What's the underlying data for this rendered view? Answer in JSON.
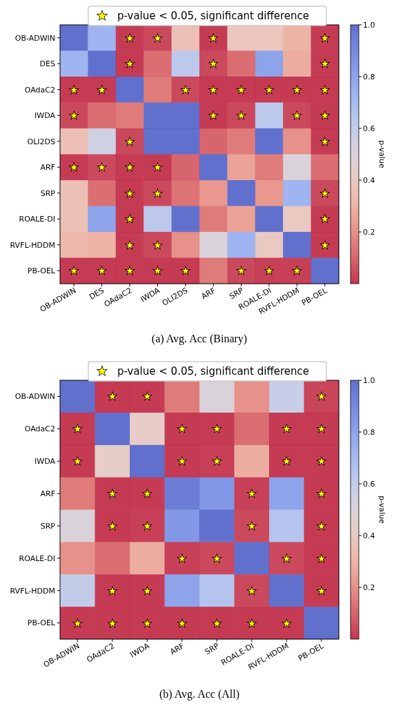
{
  "chart_data": [
    {
      "type": "heatmap",
      "title": "(a) Avg. Acc (Binary)",
      "clabel": "p-value",
      "annotations": [
        "p-value < 0.05, significant difference"
      ],
      "categories": [
        "OB-ADWIN",
        "DES",
        "OAdaC2",
        "IWDA",
        "OLI2DS",
        "ARF",
        "SRP",
        "ROALE-DI",
        "RVFL-HDDM",
        "PB-OEL"
      ],
      "y_categories": [
        "OB-ADWIN",
        "DES",
        "OAdaC2",
        "IWDA",
        "OLI2DS",
        "ARF",
        "SRP",
        "ROALE-DI",
        "RVFL-HDDM",
        "PB-OEL"
      ],
      "cells": [
        [
          1,
          0.73,
          0.01,
          0.04,
          0.35,
          0.01,
          0.38,
          0.38,
          0.3,
          0.01
        ],
        [
          0.73,
          1,
          0.01,
          0.12,
          0.62,
          0.04,
          0.12,
          0.8,
          0.28,
          0.01
        ],
        [
          0.01,
          0.01,
          1,
          0.15,
          0.04,
          0.01,
          0.01,
          0.01,
          0.01,
          0.01
        ],
        [
          0.04,
          0.12,
          0.15,
          1,
          1,
          0.01,
          0.04,
          0.62,
          0.04,
          0.01
        ],
        [
          0.35,
          0.55,
          0.04,
          1,
          1,
          0.1,
          0.15,
          1,
          0.2,
          0.01
        ],
        [
          0.01,
          0.04,
          0.01,
          0.01,
          0.1,
          1,
          0.25,
          0.15,
          0.5,
          0.12
        ],
        [
          0.35,
          0.12,
          0.01,
          0.04,
          0.13,
          0.22,
          1,
          0.22,
          0.73,
          0.04
        ],
        [
          0.35,
          0.8,
          0.01,
          0.62,
          1,
          0.15,
          0.25,
          1,
          0.4,
          0.01
        ],
        [
          0.32,
          0.3,
          0.01,
          0.04,
          0.2,
          0.5,
          0.73,
          0.4,
          1,
          0.01
        ],
        [
          0.01,
          0.01,
          0.01,
          0.01,
          0.01,
          0.15,
          0.04,
          0.02,
          0.02,
          1
        ]
      ],
      "cell_labels": [
        [
          null,
          null,
          "★",
          "★",
          null,
          "★",
          null,
          null,
          null,
          "★"
        ],
        [
          null,
          null,
          "★",
          null,
          null,
          "★",
          null,
          null,
          null,
          "★"
        ],
        [
          "★",
          "★",
          null,
          null,
          "★",
          "★",
          "★",
          "★",
          "★",
          "★"
        ],
        [
          "★",
          null,
          null,
          null,
          null,
          "★",
          "★",
          null,
          "★",
          "★"
        ],
        [
          null,
          null,
          "★",
          null,
          null,
          null,
          null,
          null,
          null,
          "★"
        ],
        [
          "★",
          "★",
          "★",
          "★",
          null,
          null,
          null,
          null,
          null,
          null
        ],
        [
          null,
          null,
          "★",
          "★",
          null,
          null,
          null,
          null,
          null,
          "★"
        ],
        [
          null,
          null,
          "★",
          null,
          null,
          null,
          null,
          null,
          null,
          "★"
        ],
        [
          null,
          null,
          "★",
          "★",
          null,
          null,
          null,
          null,
          null,
          "★"
        ],
        [
          "★",
          "★",
          "★",
          "★",
          "★",
          null,
          "★",
          "★",
          "★",
          null
        ]
      ],
      "clim": [
        0,
        1
      ],
      "cticks": [
        0.2,
        0.4,
        0.6,
        0.8,
        {
          "value": 1,
          "label": "1.0"
        }
      ]
    },
    {
      "type": "heatmap",
      "title": "(b) Avg. Acc (All)",
      "clabel": "p-value",
      "annotations": [
        "p-value < 0.05, significant difference"
      ],
      "categories": [
        "OB-ADWIN",
        "OAdaC2",
        "IWDA",
        "ARF",
        "SRP",
        "ROALE-DI",
        "RVFL-HDDM",
        "PB-OEL"
      ],
      "y_categories": [
        "OB-ADWIN",
        "OAdaC2",
        "IWDA",
        "ARF",
        "SRP",
        "ROALE-DI",
        "RVFL-HDDM",
        "PB-OEL"
      ],
      "cells": [
        [
          1,
          0.01,
          0.01,
          0.15,
          0.5,
          0.2,
          0.58,
          0.03
        ],
        [
          0.01,
          1,
          0.42,
          0.01,
          0.01,
          0.12,
          0.01,
          0.01
        ],
        [
          0.01,
          0.42,
          1,
          0.01,
          0.02,
          0.28,
          0.01,
          0.01
        ],
        [
          0.15,
          0.01,
          0.01,
          0.95,
          0.85,
          0.02,
          0.8,
          0.01
        ],
        [
          0.5,
          0.01,
          0.02,
          0.85,
          1,
          0.04,
          0.65,
          0.01
        ],
        [
          0.2,
          0.12,
          0.28,
          0.02,
          0.04,
          1,
          0.04,
          0.01
        ],
        [
          0.6,
          0.01,
          0.01,
          0.8,
          0.65,
          0.04,
          1,
          0.01
        ],
        [
          0.01,
          0.01,
          0.01,
          0.01,
          0.01,
          0.01,
          0.01,
          1
        ]
      ],
      "cell_labels": [
        [
          null,
          "★",
          "★",
          null,
          null,
          null,
          null,
          "★"
        ],
        [
          "★",
          null,
          null,
          "★",
          "★",
          null,
          "★",
          "★"
        ],
        [
          "★",
          null,
          null,
          "★",
          "★",
          null,
          "★",
          "★"
        ],
        [
          null,
          "★",
          "★",
          null,
          null,
          "★",
          null,
          "★"
        ],
        [
          null,
          "★",
          "★",
          null,
          null,
          "★",
          null,
          "★"
        ],
        [
          null,
          null,
          null,
          "★",
          "★",
          null,
          "★",
          "★"
        ],
        [
          null,
          "★",
          "★",
          null,
          null,
          "★",
          null,
          "★"
        ],
        [
          "★",
          "★",
          "★",
          "★",
          "★",
          "★",
          "★",
          null
        ]
      ],
      "clim": [
        0,
        1
      ],
      "cticks": [
        0.2,
        0.4,
        0.6,
        0.8,
        {
          "value": 1,
          "label": "1.0"
        }
      ]
    }
  ]
}
